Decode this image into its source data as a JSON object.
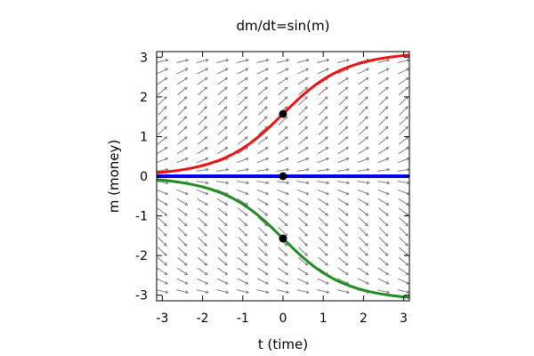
{
  "chart_data": {
    "type": "line",
    "title": "dm/dt=sin(m)",
    "xlabel": "t (time)",
    "ylabel": "m (money)",
    "xlim": [
      -3.14159,
      3.14159
    ],
    "ylim": [
      -3.14159,
      3.14159
    ],
    "xticks": [
      -3,
      -2,
      -1,
      0,
      1,
      2,
      3
    ],
    "yticks": [
      -3,
      -2,
      -1,
      0,
      1,
      2,
      3
    ],
    "xtick_labels": [
      "-3",
      "-2",
      "-1",
      "0",
      "1",
      "2",
      "3"
    ],
    "ytick_labels": [
      "-3",
      "-2",
      "-1",
      "0",
      "1",
      "2",
      "3"
    ],
    "grid": false,
    "legend": "none",
    "direction_field": {
      "equation": "dm/dt = sin(m)",
      "t_values": [
        -3.0,
        -2.5,
        -2.0,
        -1.5,
        -1.0,
        -0.5,
        0.0,
        0.5,
        1.0,
        1.5,
        2.0,
        2.5,
        3.0
      ],
      "m_values": [
        -2.9,
        -2.65,
        -2.4,
        -2.15,
        -1.9,
        -1.65,
        -1.4,
        -1.15,
        -0.9,
        -0.65,
        -0.4,
        -0.15,
        0.15,
        0.4,
        0.65,
        0.9,
        1.15,
        1.4,
        1.65,
        1.9,
        2.15,
        2.4,
        2.65,
        2.9
      ],
      "color": "#808080"
    },
    "series": [
      {
        "color": "#ee1111",
        "initial_condition": {
          "t": 0,
          "m": 1.5708
        },
        "x": [
          -3.14159,
          -2.5,
          -2.0,
          -1.5,
          -1.0,
          -0.5,
          0,
          0.5,
          1.0,
          1.5,
          2.0,
          2.5,
          3.14159
        ],
        "values": [
          0.0864,
          0.1637,
          0.2686,
          0.4369,
          0.704,
          1.0924,
          1.5708,
          2.0492,
          2.4376,
          2.7047,
          2.873,
          2.9779,
          3.0552
        ]
      },
      {
        "color": "#0000ee",
        "initial_condition": {
          "t": 0,
          "m": 0
        },
        "x": [
          -3.14159,
          3.14159
        ],
        "values": [
          0,
          0
        ]
      },
      {
        "color": "#228b22",
        "initial_condition": {
          "t": 0,
          "m": -1.5708
        },
        "x": [
          -3.14159,
          -2.5,
          -2.0,
          -1.5,
          -1.0,
          -0.5,
          0,
          0.5,
          1.0,
          1.5,
          2.0,
          2.5,
          3.14159
        ],
        "values": [
          -0.0864,
          -0.1637,
          -0.2686,
          -0.4369,
          -0.704,
          -1.0924,
          -1.5708,
          -2.0492,
          -2.4376,
          -2.7047,
          -2.873,
          -2.9779,
          -3.0552
        ]
      }
    ],
    "points": [
      {
        "x": 0,
        "y": 1.5708,
        "color": "#000000"
      },
      {
        "x": 0,
        "y": 0,
        "color": "#000000"
      },
      {
        "x": 0,
        "y": -1.5708,
        "color": "#000000"
      }
    ]
  }
}
